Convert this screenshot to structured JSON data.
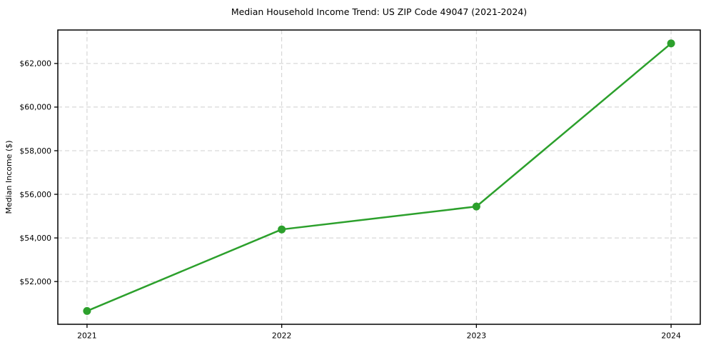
{
  "figure": {
    "background_color": "#ffffff"
  },
  "chart_data": {
    "type": "line",
    "title": "Median Household Income Trend: US ZIP Code 49047 (2021-2024)",
    "xlabel": "",
    "ylabel": "Median Income ($)",
    "x": [
      2021,
      2022,
      2023,
      2024
    ],
    "categories": [
      "2021",
      "2022",
      "2023",
      "2024"
    ],
    "series": [
      {
        "name": "Median Household Income",
        "values": [
          50650,
          54390,
          55440,
          62920
        ]
      }
    ],
    "x_ticks": [
      {
        "value": 2021,
        "label": "2021"
      },
      {
        "value": 2022,
        "label": "2022"
      },
      {
        "value": 2023,
        "label": "2023"
      },
      {
        "value": 2024,
        "label": "2024"
      }
    ],
    "y_ticks": [
      {
        "value": 52000,
        "label": "$52,000"
      },
      {
        "value": 54000,
        "label": "$54,000"
      },
      {
        "value": 56000,
        "label": "$56,000"
      },
      {
        "value": 58000,
        "label": "$58,000"
      },
      {
        "value": 60000,
        "label": "$60,000"
      },
      {
        "value": 62000,
        "label": "$62,000"
      }
    ],
    "xlim": [
      2020.85,
      2024.15
    ],
    "ylim": [
      50040,
      63535
    ],
    "grid": "both-dashed",
    "legend": "none",
    "line_color": "#2ca02c",
    "marker": "circle",
    "marker_diameter": 11,
    "line_width": 2.5,
    "grid_color": "#cfcfcf",
    "frame_color": "#000000",
    "background": "#ffffff"
  }
}
